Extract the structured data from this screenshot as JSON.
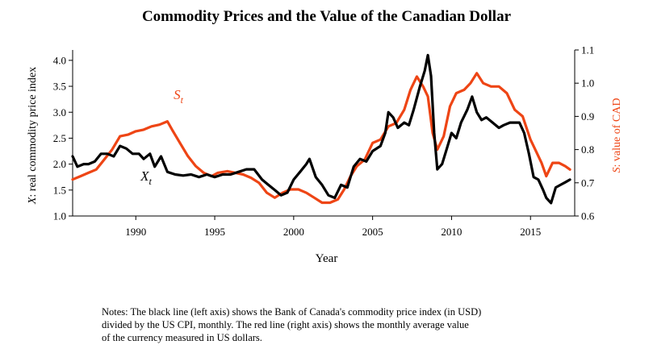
{
  "chart_data": {
    "type": "line",
    "title": "Commodity Prices and the Value of the Canadian Dollar",
    "xlabel": "Year",
    "ylabel_left": "X: real commodity price index",
    "ylabel_right": "S: value of CAD",
    "xlim": [
      1986.0,
      2017.8
    ],
    "ylim_left": [
      1.0,
      4.2
    ],
    "ylim_right": [
      0.6,
      1.1
    ],
    "x_ticks": [
      1990,
      1995,
      2000,
      2005,
      2010,
      2015
    ],
    "y_ticks_left": [
      1.0,
      1.5,
      2.0,
      2.5,
      3.0,
      3.5,
      4.0
    ],
    "y_ticks_right": [
      0.6,
      0.7,
      0.8,
      0.9,
      1.0,
      1.1
    ],
    "grid": false,
    "legend": "none",
    "series": [
      {
        "name": "X_t",
        "axis": "left",
        "color": "#000000",
        "x": [
          1986.0,
          1986.3,
          1986.7,
          1987.0,
          1987.4,
          1987.8,
          1988.2,
          1988.6,
          1989.0,
          1989.4,
          1989.8,
          1990.2,
          1990.5,
          1990.9,
          1991.2,
          1991.6,
          1992.0,
          1992.5,
          1993.0,
          1993.5,
          1994.0,
          1994.5,
          1995.0,
          1995.5,
          1996.0,
          1996.5,
          1997.0,
          1997.5,
          1998.0,
          1998.4,
          1998.8,
          1999.2,
          1999.6,
          2000.0,
          2000.4,
          2000.8,
          2001.0,
          2001.4,
          2001.8,
          2002.2,
          2002.6,
          2003.0,
          2003.4,
          2003.8,
          2004.2,
          2004.6,
          2005.0,
          2005.5,
          2005.8,
          2006.0,
          2006.3,
          2006.6,
          2007.0,
          2007.3,
          2007.6,
          2008.0,
          2008.3,
          2008.5,
          2008.7,
          2008.9,
          2009.1,
          2009.4,
          2009.7,
          2010.0,
          2010.3,
          2010.6,
          2011.0,
          2011.3,
          2011.6,
          2011.9,
          2012.2,
          2012.6,
          2013.0,
          2013.3,
          2013.7,
          2014.0,
          2014.3,
          2014.6,
          2014.9,
          2015.2,
          2015.5,
          2015.8,
          2016.0,
          2016.3,
          2016.6,
          2016.9,
          2017.2,
          2017.5
        ],
        "y": [
          2.15,
          1.95,
          2.0,
          2.0,
          2.05,
          2.2,
          2.2,
          2.15,
          2.35,
          2.3,
          2.2,
          2.2,
          2.1,
          2.2,
          1.95,
          2.15,
          1.85,
          1.8,
          1.78,
          1.8,
          1.75,
          1.8,
          1.75,
          1.8,
          1.8,
          1.85,
          1.9,
          1.9,
          1.7,
          1.6,
          1.5,
          1.4,
          1.45,
          1.7,
          1.85,
          2.0,
          2.1,
          1.75,
          1.6,
          1.4,
          1.35,
          1.6,
          1.55,
          1.95,
          2.1,
          2.05,
          2.25,
          2.35,
          2.6,
          3.0,
          2.9,
          2.7,
          2.8,
          2.75,
          3.05,
          3.5,
          3.8,
          4.1,
          3.7,
          2.6,
          1.9,
          2.0,
          2.3,
          2.6,
          2.5,
          2.8,
          3.05,
          3.3,
          3.0,
          2.85,
          2.9,
          2.8,
          2.7,
          2.75,
          2.8,
          2.8,
          2.8,
          2.6,
          2.2,
          1.75,
          1.7,
          1.5,
          1.35,
          1.25,
          1.55,
          1.6,
          1.65,
          1.7
        ]
      },
      {
        "name": "S_t",
        "axis": "right",
        "color": "#ee4515",
        "x": [
          1986.0,
          1986.5,
          1987.0,
          1987.5,
          1988.0,
          1988.5,
          1989.0,
          1989.5,
          1990.0,
          1990.5,
          1991.0,
          1991.5,
          1992.0,
          1992.3,
          1992.8,
          1993.3,
          1993.8,
          1994.3,
          1994.8,
          1995.2,
          1995.8,
          1996.3,
          1996.8,
          1997.3,
          1997.8,
          1998.3,
          1998.8,
          1999.3,
          1999.8,
          2000.3,
          2000.8,
          2001.3,
          2001.8,
          2002.3,
          2002.8,
          2003.2,
          2003.6,
          2004.0,
          2004.5,
          2005.0,
          2005.5,
          2006.0,
          2006.5,
          2007.0,
          2007.4,
          2007.8,
          2008.2,
          2008.5,
          2008.8,
          2009.1,
          2009.5,
          2009.9,
          2010.3,
          2010.8,
          2011.2,
          2011.6,
          2012.0,
          2012.5,
          2013.0,
          2013.5,
          2014.0,
          2014.5,
          2015.0,
          2015.3,
          2015.7,
          2016.0,
          2016.4,
          2016.8,
          2017.2,
          2017.5
        ],
        "y": [
          0.71,
          0.72,
          0.73,
          0.74,
          0.77,
          0.8,
          0.84,
          0.845,
          0.855,
          0.86,
          0.87,
          0.875,
          0.885,
          0.86,
          0.82,
          0.78,
          0.75,
          0.73,
          0.72,
          0.73,
          0.735,
          0.73,
          0.725,
          0.715,
          0.7,
          0.67,
          0.655,
          0.67,
          0.68,
          0.68,
          0.67,
          0.655,
          0.64,
          0.64,
          0.65,
          0.68,
          0.72,
          0.75,
          0.77,
          0.82,
          0.83,
          0.87,
          0.88,
          0.92,
          0.98,
          1.02,
          0.99,
          0.96,
          0.85,
          0.8,
          0.84,
          0.93,
          0.97,
          0.98,
          1.0,
          1.03,
          1.0,
          0.99,
          0.99,
          0.97,
          0.92,
          0.9,
          0.83,
          0.8,
          0.76,
          0.72,
          0.76,
          0.76,
          0.75,
          0.74
        ]
      }
    ],
    "annotations": [
      {
        "label": "S",
        "subscript": "t",
        "x": 1992.4,
        "y": 3.25,
        "axis": "left",
        "color": "#ee4515"
      },
      {
        "label": "X",
        "subscript": "t",
        "x": 1990.3,
        "y": 1.68,
        "axis": "left",
        "color": "#000000"
      }
    ],
    "notes": [
      "Notes:  The black line (left axis) shows the Bank of Canada's commodity price index (in USD)",
      "divided by the US CPI, monthly.  The red line (right axis) shows the monthly average value",
      "of the currency measured in US dollars."
    ]
  }
}
